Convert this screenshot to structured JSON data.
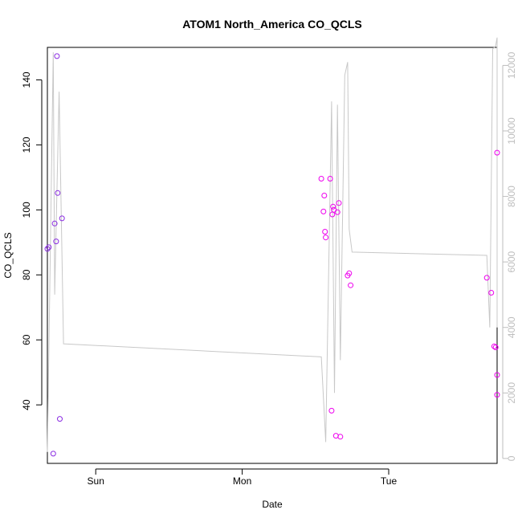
{
  "chart_data": {
    "type": "scatter",
    "title": "ATOM1 North_America CO_QCLS",
    "xlabel": "Date",
    "ylabel": "CO_QCLS",
    "x_unit": "days",
    "x_ticks": [
      {
        "x": 0.0,
        "label": "Sun"
      },
      {
        "x": 1.0,
        "label": "Mon"
      },
      {
        "x": 2.0,
        "label": "Tue"
      }
    ],
    "xlim": [
      -0.33,
      2.74
    ],
    "ylim": [
      22,
      150
    ],
    "y_ticks": [
      40,
      60,
      80,
      100,
      120,
      140
    ],
    "y2lim": [
      -150,
      12550
    ],
    "y2_ticks": [
      0,
      2000,
      4000,
      6000,
      8000,
      10000,
      12000
    ],
    "grid": false,
    "legend": "none",
    "colors": {
      "line": "#c8c8c8",
      "right_axis": "#bebebe",
      "points_violet": "#8a2be2",
      "points_magenta": "#ee00ee"
    },
    "series": [
      {
        "style": "line",
        "axis": "right",
        "points": [
          [
            -0.33,
            200
          ],
          [
            -0.29,
            12400
          ],
          [
            -0.28,
            5000
          ],
          [
            -0.25,
            11200
          ],
          [
            -0.22,
            3500
          ],
          [
            1.54,
            3100
          ],
          [
            1.57,
            500
          ],
          [
            1.61,
            10900
          ],
          [
            1.63,
            2000
          ],
          [
            1.65,
            10800
          ],
          [
            1.67,
            3000
          ],
          [
            1.7,
            11700
          ],
          [
            1.72,
            12100
          ],
          [
            1.73,
            7000
          ],
          [
            1.75,
            6300
          ],
          [
            2.67,
            6200
          ],
          [
            2.69,
            4000
          ],
          [
            2.71,
            12500
          ],
          [
            2.73,
            12600
          ],
          [
            2.75,
            12850
          ],
          [
            2.77,
            12700
          ],
          [
            2.79,
            4000
          ]
        ]
      },
      {
        "style": "points",
        "axis": "left",
        "color": "points_violet",
        "points": [
          [
            -0.33,
            88
          ],
          [
            -0.32,
            88.5
          ],
          [
            -0.29,
            25
          ],
          [
            -0.28,
            95.8
          ],
          [
            -0.27,
            90.3
          ],
          [
            -0.265,
            147.3
          ],
          [
            -0.26,
            105.2
          ],
          [
            -0.245,
            35.7
          ],
          [
            -0.23,
            97.4
          ]
        ]
      },
      {
        "style": "points",
        "axis": "left",
        "color": "points_magenta",
        "points": [
          [
            1.54,
            109.6
          ],
          [
            1.555,
            99.5
          ],
          [
            1.56,
            104.4
          ],
          [
            1.565,
            93.3
          ],
          [
            1.57,
            91.5
          ],
          [
            1.6,
            109.6
          ],
          [
            1.61,
            38.2
          ],
          [
            1.615,
            98.6
          ],
          [
            1.62,
            101
          ],
          [
            1.625,
            100
          ],
          [
            1.64,
            30.5
          ],
          [
            1.65,
            99.3
          ],
          [
            1.66,
            102.1
          ],
          [
            1.67,
            30.2
          ],
          [
            1.72,
            79.8
          ],
          [
            1.73,
            80.5
          ],
          [
            1.74,
            76.8
          ],
          [
            2.67,
            79.1
          ],
          [
            2.7,
            74.5
          ],
          [
            2.72,
            58
          ],
          [
            2.73,
            57.7
          ],
          [
            2.76,
            43.1
          ],
          [
            2.77,
            49.2
          ],
          [
            2.79,
            117.6
          ]
        ]
      }
    ]
  }
}
